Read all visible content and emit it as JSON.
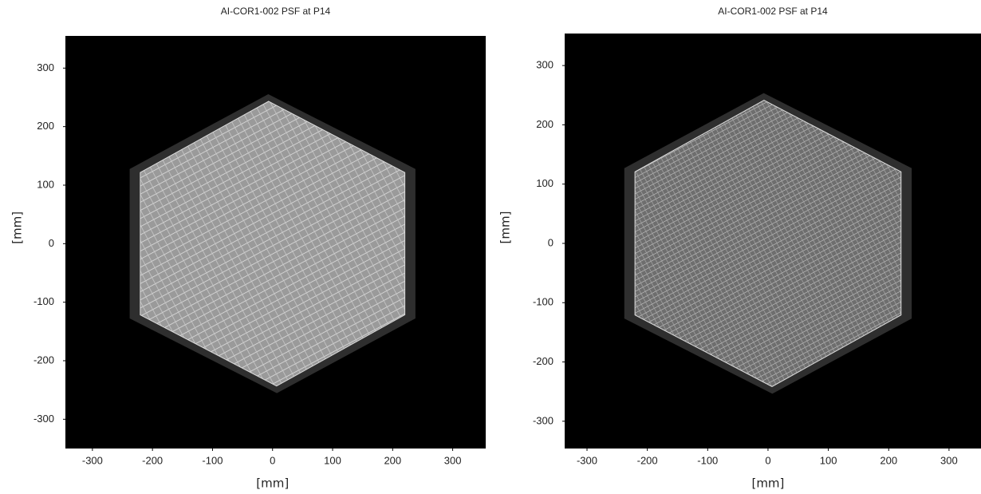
{
  "chart_data": [
    {
      "type": "image",
      "title": "AI-COR1-002 PSF at P14",
      "xlabel": "[mm]",
      "ylabel": "[mm]",
      "xlim": [
        -345,
        355
      ],
      "ylim": [
        -350,
        355
      ],
      "xticks": [
        -300,
        -200,
        -100,
        0,
        100,
        200,
        300
      ],
      "yticks": [
        -300,
        -200,
        -100,
        0,
        100,
        200,
        300
      ]
    },
    {
      "type": "image",
      "title": "AI-COR1-002 PSF at P14",
      "xlabel": "[mm]",
      "ylabel": "[mm]",
      "xlim": [
        -337,
        353
      ],
      "ylim": [
        -346,
        354
      ],
      "xticks": [
        -300,
        -200,
        -100,
        0,
        100,
        200,
        300
      ],
      "yticks": [
        -300,
        -200,
        -100,
        0,
        100,
        200,
        300
      ]
    }
  ]
}
